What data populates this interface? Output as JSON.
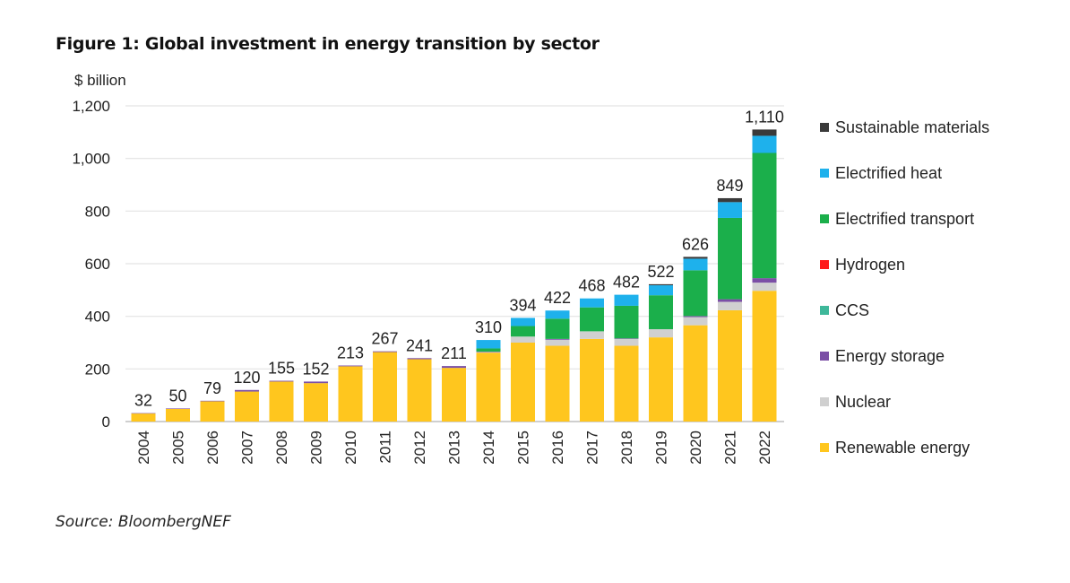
{
  "figure_title": "Figure 1: Global investment in energy transition by sector",
  "source": "Source: BloombergNEF",
  "chart_data": {
    "type": "bar",
    "stacked": true,
    "title": "Figure 1: Global investment in energy transition by sector",
    "ylabel": "$ billion",
    "xlabel": "",
    "ylim": [
      0,
      1200
    ],
    "yticks": [
      0,
      200,
      400,
      600,
      800,
      1000,
      1200
    ],
    "ytick_labels": [
      "0",
      "200",
      "400",
      "600",
      "800",
      "1,000",
      "1,200"
    ],
    "grid": true,
    "legend_position": "right",
    "categories": [
      "2004",
      "2005",
      "2006",
      "2007",
      "2008",
      "2009",
      "2010",
      "2011",
      "2012",
      "2013",
      "2014",
      "2015",
      "2016",
      "2017",
      "2018",
      "2019",
      "2020",
      "2021",
      "2022"
    ],
    "totals": [
      32,
      50,
      79,
      120,
      155,
      152,
      213,
      267,
      241,
      211,
      310,
      394,
      422,
      468,
      482,
      522,
      626,
      849,
      1110
    ],
    "total_labels": [
      "32",
      "50",
      "79",
      "120",
      "155",
      "152",
      "213",
      "267",
      "241",
      "211",
      "310",
      "394",
      "422",
      "468",
      "482",
      "522",
      "626",
      "849",
      "1,110"
    ],
    "series": [
      {
        "name": "Renewable energy",
        "color": "#FFC61E",
        "values": [
          31,
          48,
          77,
          114,
          152,
          146,
          210,
          264,
          237,
          204,
          262,
          300,
          288,
          314,
          288,
          320,
          366,
          423,
          497
        ]
      },
      {
        "name": "Nuclear",
        "color": "#D0D0D0",
        "values": [
          0,
          0,
          0,
          0,
          0,
          0,
          0,
          0,
          0,
          0,
          3,
          23,
          23,
          29,
          26,
          31,
          31,
          32,
          31
        ]
      },
      {
        "name": "Energy storage",
        "color": "#7B4FA6",
        "values": [
          1,
          2,
          2,
          6,
          3,
          6,
          3,
          3,
          4,
          7,
          1,
          0,
          3,
          0,
          2,
          0,
          4,
          10,
          17
        ]
      },
      {
        "name": "CCS",
        "color": "#3EB89A",
        "values": [
          0,
          0,
          0,
          0,
          0,
          0,
          0,
          0,
          0,
          0,
          0,
          0,
          0,
          0,
          0,
          0,
          0,
          0,
          0
        ]
      },
      {
        "name": "Hydrogen",
        "color": "#FF1A1A",
        "values": [
          0,
          0,
          0,
          0,
          0,
          0,
          0,
          0,
          0,
          0,
          0,
          0,
          0,
          0,
          0,
          0,
          0,
          0,
          0
        ]
      },
      {
        "name": "Electrified transport",
        "color": "#1BAF4B",
        "values": [
          0,
          0,
          0,
          0,
          0,
          0,
          0,
          0,
          0,
          0,
          12,
          40,
          77,
          91,
          124,
          129,
          174,
          309,
          476
        ]
      },
      {
        "name": "Electrified heat",
        "color": "#1EB1EC",
        "values": [
          0,
          0,
          0,
          0,
          0,
          0,
          0,
          0,
          0,
          0,
          32,
          31,
          31,
          34,
          42,
          38,
          44,
          60,
          65
        ]
      },
      {
        "name": "Sustainable materials",
        "color": "#3A3A3A",
        "values": [
          0,
          0,
          0,
          0,
          0,
          0,
          0,
          0,
          0,
          0,
          0,
          0,
          0,
          0,
          0,
          4,
          7,
          15,
          24
        ]
      }
    ],
    "legend_order": [
      "Sustainable materials",
      "Electrified heat",
      "Electrified transport",
      "Hydrogen",
      "CCS",
      "Energy storage",
      "Nuclear",
      "Renewable energy"
    ]
  }
}
